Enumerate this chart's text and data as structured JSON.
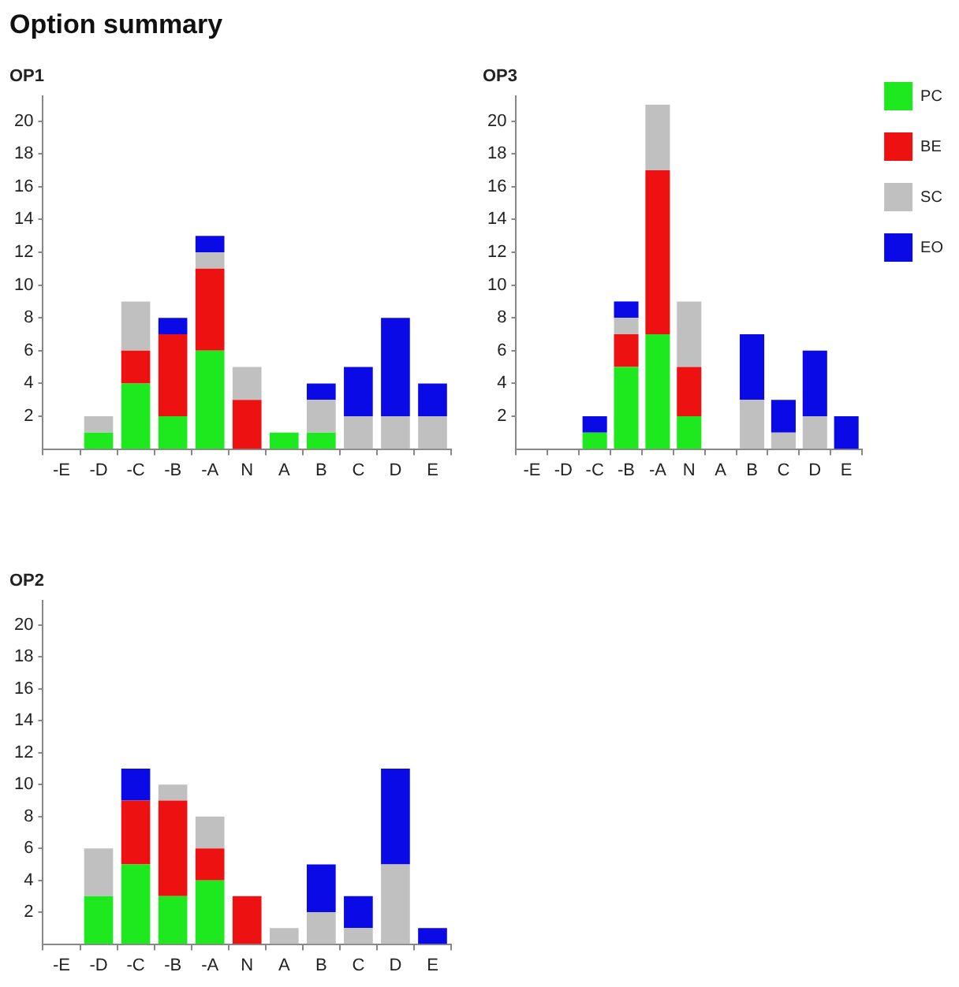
{
  "chart_data": [
    {
      "type": "bar",
      "title": "OP1",
      "annotations": [
        "Option summary"
      ],
      "categories": [
        "-E",
        "-D",
        "-C",
        "-B",
        "-A",
        "N",
        "A",
        "B",
        "C",
        "D",
        "E"
      ],
      "stacked": true,
      "ylim": [
        0,
        21.5
      ],
      "yticks": [
        2,
        4,
        6,
        8,
        10,
        12,
        14,
        16,
        18,
        20
      ],
      "grid": false,
      "legend": false,
      "series": [
        {
          "color": "#1ee81e",
          "values": [
            0,
            1,
            4,
            2,
            6,
            0,
            1,
            1,
            0,
            0,
            0
          ]
        },
        {
          "color": "#ee1111",
          "values": [
            0,
            0,
            2,
            5,
            5,
            3,
            0,
            0,
            0,
            0,
            0
          ]
        },
        {
          "color": "#c0c0c0",
          "values": [
            0,
            1,
            3,
            0,
            1,
            2,
            0,
            2,
            2,
            2,
            2
          ]
        },
        {
          "color": "#0a0ae6",
          "values": [
            0,
            0,
            0,
            1,
            1,
            0,
            0,
            1,
            3,
            6,
            2
          ]
        }
      ]
    },
    {
      "type": "bar",
      "title": "OP3",
      "categories": [
        "-E",
        "-D",
        "-C",
        "-B",
        "-A",
        "N",
        "A",
        "B",
        "C",
        "D",
        "E"
      ],
      "stacked": true,
      "ylim": [
        0,
        21.5
      ],
      "yticks": [
        2,
        4,
        6,
        8,
        10,
        12,
        14,
        16,
        18,
        20
      ],
      "grid": false,
      "legend": "right",
      "series": [
        {
          "name": "PC",
          "color": "#1ee81e",
          "values": [
            0,
            0,
            1,
            5,
            7,
            2,
            0,
            0,
            0,
            0,
            0
          ]
        },
        {
          "name": "BE",
          "color": "#ee1111",
          "values": [
            0,
            0,
            0,
            2,
            10,
            3,
            0,
            0,
            0,
            0,
            0
          ]
        },
        {
          "name": "SC",
          "color": "#c0c0c0",
          "values": [
            0,
            0,
            0,
            1,
            4,
            4,
            0,
            3,
            1,
            2,
            0
          ]
        },
        {
          "name": "EO",
          "color": "#0a0ae6",
          "values": [
            0,
            0,
            1,
            1,
            0,
            0,
            0,
            4,
            2,
            4,
            2
          ]
        }
      ]
    },
    {
      "type": "bar",
      "title": "OP2",
      "categories": [
        "-E",
        "-D",
        "-C",
        "-B",
        "-A",
        "N",
        "A",
        "B",
        "C",
        "D",
        "E"
      ],
      "stacked": true,
      "ylim": [
        0,
        21.5
      ],
      "yticks": [
        2,
        4,
        6,
        8,
        10,
        12,
        14,
        16,
        18,
        20
      ],
      "grid": false,
      "legend": false,
      "series": [
        {
          "color": "#1ee81e",
          "values": [
            0,
            3,
            5,
            3,
            4,
            0,
            0,
            0,
            0,
            0,
            0
          ]
        },
        {
          "color": "#ee1111",
          "values": [
            0,
            0,
            4,
            6,
            2,
            3,
            0,
            0,
            0,
            0,
            0
          ]
        },
        {
          "color": "#c0c0c0",
          "values": [
            0,
            3,
            0,
            1,
            2,
            0,
            1,
            2,
            1,
            5,
            0
          ]
        },
        {
          "color": "#0a0ae6",
          "values": [
            0,
            0,
            2,
            0,
            0,
            0,
            0,
            3,
            2,
            6,
            1
          ]
        }
      ]
    }
  ]
}
